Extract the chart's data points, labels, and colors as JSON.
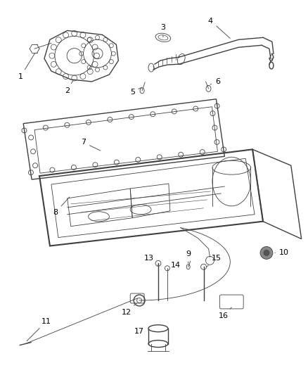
{
  "bg_color": "#ffffff",
  "line_color": "#404040",
  "label_color": "#000000",
  "figsize": [
    4.38,
    5.33
  ],
  "dpi": 100
}
